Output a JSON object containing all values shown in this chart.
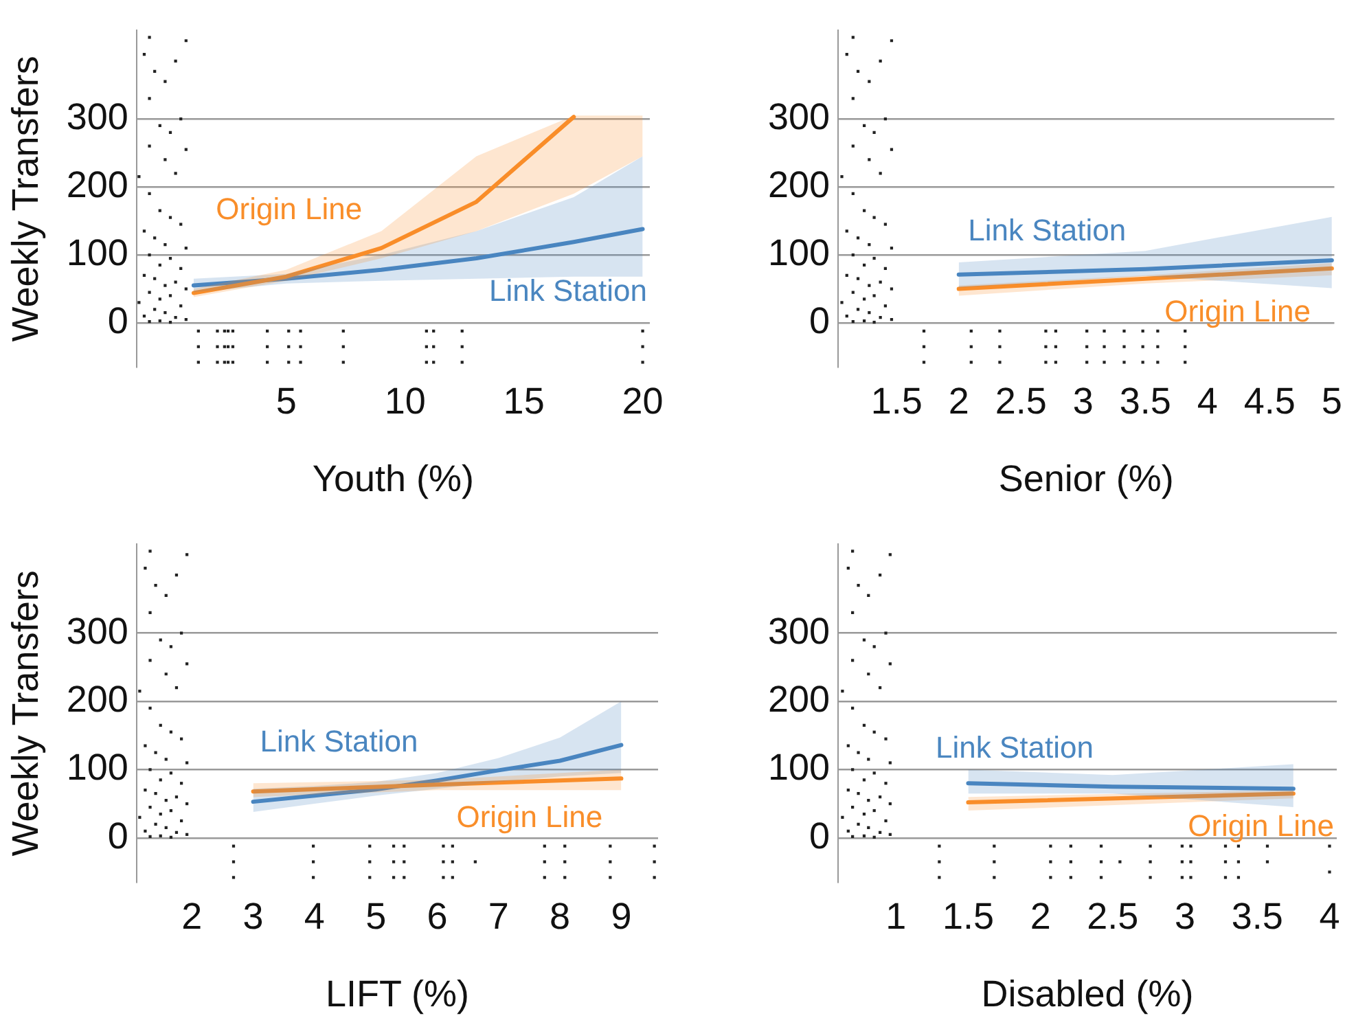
{
  "chart_data": [
    {
      "type": "line",
      "xlabel": "Youth (%)",
      "ylabel": "Weekly Transfers",
      "xlim": [
        -1.3,
        20.3
      ],
      "xticks": [
        5,
        10,
        15,
        20
      ],
      "ylim": [
        -65,
        430
      ],
      "yticks": [
        0,
        100,
        200,
        300
      ],
      "grid": "y",
      "series": [
        {
          "type": "scatter",
          "color": "#222222",
          "marker": "square",
          "x": [
            -0.76,
            0.78,
            -0.98,
            0.34,
            -0.54,
            -0.1,
            -0.76,
            0.56,
            -0.32,
            0.12,
            -0.76,
            0.78,
            -0.1,
            -1.2,
            0.34,
            -0.76,
            -0.32,
            0.12,
            0.56,
            -0.98,
            -0.54,
            -0.1,
            0.78,
            -0.76,
            0.12,
            -0.32,
            0.56,
            -0.98,
            -0.54,
            0.34,
            -0.1,
            0.78,
            -0.76,
            0.12,
            -0.32,
            -1.2,
            0.56,
            -0.54,
            -0.1,
            -0.98,
            0.34,
            0.78,
            -0.32,
            -0.76,
            0.12
          ],
          "values": [
            420,
            415,
            395,
            385,
            370,
            355,
            330,
            300,
            290,
            280,
            260,
            255,
            240,
            215,
            220,
            190,
            165,
            155,
            145,
            135,
            125,
            115,
            110,
            100,
            95,
            85,
            80,
            70,
            65,
            60,
            55,
            50,
            45,
            40,
            35,
            30,
            25,
            20,
            15,
            10,
            8,
            5,
            3,
            2,
            1
          ]
        },
        {
          "type": "scatter",
          "color": "#222222",
          "marker": "square",
          "x": [
            1.3,
            1.3,
            1.3,
            2.1,
            2.1,
            2.1,
            2.4,
            2.4,
            2.4,
            2.55,
            2.55,
            2.55,
            2.75,
            2.75,
            2.75,
            4.2,
            4.2,
            4.2,
            5.1,
            5.1,
            5.1,
            5.6,
            5.6,
            5.6,
            7.4,
            7.4,
            7.4,
            10.9,
            10.9,
            10.9,
            11.2,
            11.2,
            11.2,
            12.4,
            12.4,
            12.4,
            20,
            20,
            20
          ],
          "values": [
            -12,
            -35,
            -58,
            -12,
            -35,
            -58,
            -12,
            -35,
            -58,
            -12,
            -35,
            -58,
            -12,
            -35,
            -58,
            -12,
            -35,
            -58,
            -12,
            -35,
            -58,
            -12,
            -35,
            -58,
            -12,
            -35,
            -58,
            -12,
            -35,
            -58,
            -12,
            -35,
            -58,
            -12,
            -35,
            -58,
            -12,
            -35,
            -58
          ]
        },
        {
          "name": "Origin Line",
          "type": "line",
          "marker": "none",
          "color": "#f98e2a",
          "x": [
            1.1,
            5,
            9,
            13,
            17.1,
            20
          ],
          "values": [
            44,
            68,
            110,
            178,
            303,
            null
          ],
          "lower": [
            38,
            62,
            95,
            135,
            190,
            245
          ],
          "upper": [
            50,
            78,
            135,
            245,
            305,
            305
          ]
        },
        {
          "name": "Link Station",
          "type": "line",
          "marker": "none",
          "color": "#4a86c0",
          "x": [
            1.1,
            5,
            9,
            13,
            17.1,
            20
          ],
          "values": [
            55,
            65,
            78,
            95,
            119,
            138
          ],
          "lower": [
            45,
            58,
            62,
            65,
            68,
            68
          ],
          "upper": [
            65,
            72,
            100,
            135,
            185,
            245
          ]
        }
      ]
    },
    {
      "type": "line",
      "xlabel": "Senior (%)",
      "xlim": [
        1.03,
        5.02
      ],
      "xticks": [
        1.5,
        2,
        2.5,
        3,
        3.5,
        4,
        4.5,
        5
      ],
      "ylim": [
        -65,
        430
      ],
      "yticks": [
        0,
        100,
        200,
        300
      ],
      "grid": "y",
      "series": [
        {
          "type": "scatter",
          "color": "#222222",
          "marker": "square",
          "x": [
            1.15,
            1.46,
            1.1,
            1.37,
            1.19,
            1.28,
            1.15,
            1.41,
            1.24,
            1.32,
            1.15,
            1.46,
            1.28,
            1.06,
            1.37,
            1.15,
            1.24,
            1.32,
            1.41,
            1.1,
            1.19,
            1.28,
            1.46,
            1.15,
            1.32,
            1.24,
            1.41,
            1.1,
            1.19,
            1.37,
            1.28,
            1.46,
            1.15,
            1.32,
            1.24,
            1.06,
            1.41,
            1.19,
            1.28,
            1.1,
            1.37,
            1.46,
            1.24,
            1.15,
            1.32
          ],
          "values": [
            420,
            415,
            395,
            385,
            370,
            355,
            330,
            300,
            290,
            280,
            260,
            255,
            240,
            215,
            220,
            190,
            165,
            155,
            145,
            135,
            125,
            115,
            110,
            100,
            95,
            85,
            80,
            70,
            65,
            60,
            55,
            50,
            45,
            40,
            35,
            30,
            25,
            20,
            15,
            10,
            8,
            5,
            3,
            2,
            1
          ]
        },
        {
          "type": "scatter",
          "color": "#222222",
          "marker": "square",
          "x": [
            1.72,
            1.72,
            1.72,
            2.1,
            2.1,
            2.1,
            2.33,
            2.33,
            2.33,
            2.7,
            2.7,
            2.7,
            2.78,
            2.78,
            2.78,
            3.03,
            3.03,
            3.03,
            3.17,
            3.17,
            3.17,
            3.33,
            3.33,
            3.33,
            3.48,
            3.48,
            3.48,
            3.6,
            3.6,
            3.6,
            3.82,
            3.82,
            3.82
          ],
          "values": [
            -12,
            -35,
            -58,
            -12,
            -35,
            -58,
            -12,
            -35,
            -58,
            -12,
            -35,
            -58,
            -12,
            -35,
            -58,
            -12,
            -35,
            -58,
            -12,
            -35,
            -58,
            -12,
            -35,
            -58,
            -12,
            -35,
            -58,
            -12,
            -35,
            -58,
            -12,
            -35,
            -58
          ]
        },
        {
          "name": "Link Station",
          "type": "line",
          "marker": "none",
          "color": "#4a86c0",
          "x": [
            2,
            3.5,
            5
          ],
          "values": [
            71,
            79,
            92
          ],
          "lower": [
            52,
            69,
            51
          ],
          "upper": [
            89,
            106,
            156
          ]
        },
        {
          "name": "Origin Line",
          "type": "line",
          "marker": "none",
          "color": "#f98e2a",
          "x": [
            2,
            3.5,
            5
          ],
          "values": [
            50,
            65,
            80
          ],
          "lower": [
            40,
            58,
            70
          ],
          "upper": [
            55,
            70,
            88
          ]
        }
      ]
    },
    {
      "type": "line",
      "xlabel": "LIFT (%)",
      "ylabel": "Weekly Transfers",
      "xlim": [
        1.1,
        9.6
      ],
      "xticks": [
        2,
        3,
        4,
        5,
        6,
        7,
        8,
        9
      ],
      "ylim": [
        -65,
        430
      ],
      "yticks": [
        0,
        100,
        200,
        300
      ],
      "grid": "y",
      "series": [
        {
          "type": "scatter",
          "color": "#222222",
          "marker": "square",
          "x": [
            1.32,
            1.92,
            1.24,
            1.75,
            1.41,
            1.58,
            1.32,
            1.83,
            1.49,
            1.66,
            1.32,
            1.92,
            1.58,
            1.15,
            1.75,
            1.32,
            1.49,
            1.66,
            1.83,
            1.24,
            1.41,
            1.58,
            1.92,
            1.32,
            1.66,
            1.49,
            1.83,
            1.24,
            1.41,
            1.75,
            1.58,
            1.92,
            1.32,
            1.66,
            1.49,
            1.15,
            1.83,
            1.41,
            1.58,
            1.24,
            1.75,
            1.92,
            1.49,
            1.32,
            1.66
          ],
          "values": [
            420,
            415,
            395,
            385,
            370,
            355,
            330,
            300,
            290,
            280,
            260,
            255,
            240,
            215,
            220,
            190,
            165,
            155,
            145,
            135,
            125,
            115,
            110,
            100,
            95,
            85,
            80,
            70,
            65,
            60,
            55,
            50,
            45,
            40,
            35,
            30,
            25,
            20,
            15,
            10,
            8,
            5,
            3,
            2,
            1
          ]
        },
        {
          "type": "scatter",
          "color": "#222222",
          "marker": "square",
          "x": [
            2.68,
            2.68,
            2.68,
            3.98,
            3.98,
            3.98,
            4.9,
            4.9,
            4.9,
            5.29,
            5.29,
            5.29,
            5.46,
            5.46,
            5.46,
            6.1,
            6.1,
            6.1,
            6.25,
            6.25,
            6.25,
            6.62,
            7.75,
            7.75,
            7.75,
            8.08,
            8.08,
            8.08,
            8.82,
            8.82,
            8.82,
            9.54,
            9.54,
            9.54
          ],
          "values": [
            -12,
            -35,
            -58,
            -12,
            -35,
            -58,
            -12,
            -35,
            -58,
            -12,
            -35,
            -58,
            -12,
            -35,
            -58,
            -12,
            -35,
            -58,
            -12,
            -35,
            -58,
            -35,
            -12,
            -35,
            -58,
            -12,
            -35,
            -58,
            -12,
            -35,
            -58,
            -12,
            -35,
            -58
          ]
        },
        {
          "name": "Origin Line",
          "type": "line",
          "marker": "none",
          "color": "#f98e2a",
          "x": [
            3,
            6,
            9
          ],
          "values": [
            68,
            78,
            87
          ],
          "lower": [
            60,
            70,
            70
          ],
          "upper": [
            80,
            85,
            100
          ]
        },
        {
          "name": "Link Station",
          "type": "line",
          "marker": "none",
          "color": "#4a86c0",
          "x": [
            3,
            4,
            5,
            6,
            7,
            8,
            9
          ],
          "values": [
            53,
            62,
            71,
            84,
            99,
            113,
            136
          ],
          "lower": [
            38,
            50,
            62,
            72,
            82,
            90,
            95
          ],
          "upper": [
            72,
            76,
            82,
            95,
            117,
            147,
            200
          ]
        }
      ]
    },
    {
      "type": "line",
      "xlabel": "Disabled (%)",
      "xlim": [
        0.6,
        4.05
      ],
      "xticks": [
        1,
        1.5,
        2,
        2.5,
        3,
        3.5,
        4
      ],
      "ylim": [
        -65,
        430
      ],
      "yticks": [
        0,
        100,
        200,
        300
      ],
      "grid": "y",
      "series": [
        {
          "type": "scatter",
          "color": "#222222",
          "marker": "square",
          "x": [
            0.7,
            0.96,
            0.67,
            0.89,
            0.74,
            0.81,
            0.7,
            0.93,
            0.78,
            0.85,
            0.7,
            0.96,
            0.81,
            0.63,
            0.89,
            0.7,
            0.78,
            0.85,
            0.93,
            0.67,
            0.74,
            0.81,
            0.96,
            0.7,
            0.85,
            0.78,
            0.93,
            0.67,
            0.74,
            0.89,
            0.81,
            0.96,
            0.7,
            0.85,
            0.78,
            0.63,
            0.93,
            0.74,
            0.81,
            0.67,
            0.89,
            0.96,
            0.78,
            0.7,
            0.85
          ],
          "values": [
            420,
            415,
            395,
            385,
            370,
            355,
            330,
            300,
            290,
            280,
            260,
            255,
            240,
            215,
            220,
            190,
            165,
            155,
            145,
            135,
            125,
            115,
            110,
            100,
            95,
            85,
            80,
            70,
            65,
            60,
            55,
            50,
            45,
            40,
            35,
            30,
            25,
            20,
            15,
            10,
            8,
            5,
            3,
            2,
            1
          ]
        },
        {
          "type": "scatter",
          "color": "#222222",
          "marker": "square",
          "x": [
            1.3,
            1.3,
            1.3,
            1.68,
            1.68,
            1.68,
            2.07,
            2.07,
            2.07,
            2.21,
            2.21,
            2.21,
            2.42,
            2.42,
            2.42,
            2.55,
            2.76,
            2.76,
            2.76,
            2.98,
            2.98,
            2.98,
            3.04,
            3.04,
            3.04,
            3.28,
            3.28,
            3.28,
            3.37,
            3.37,
            3.37,
            3.57,
            3.57,
            4,
            4
          ],
          "values": [
            -12,
            -35,
            -58,
            -12,
            -35,
            -58,
            -12,
            -35,
            -58,
            -12,
            -35,
            -58,
            -12,
            -35,
            -58,
            -35,
            -12,
            -35,
            -58,
            -12,
            -35,
            -58,
            -12,
            -35,
            -58,
            -12,
            -35,
            -58,
            -12,
            -35,
            -58,
            -12,
            -35,
            -12,
            -50
          ]
        },
        {
          "name": "Link Station",
          "type": "line",
          "marker": "none",
          "color": "#4a86c0",
          "x": [
            1.5,
            2.5,
            3.75
          ],
          "values": [
            80,
            75,
            72
          ],
          "lower": [
            65,
            65,
            45
          ],
          "upper": [
            100,
            92,
            108
          ]
        },
        {
          "name": "Origin Line",
          "type": "line",
          "marker": "none",
          "color": "#f98e2a",
          "x": [
            1.5,
            3.75
          ],
          "values": [
            52,
            65
          ],
          "lower": [
            40,
            58
          ],
          "upper": [
            60,
            70
          ]
        }
      ]
    }
  ]
}
